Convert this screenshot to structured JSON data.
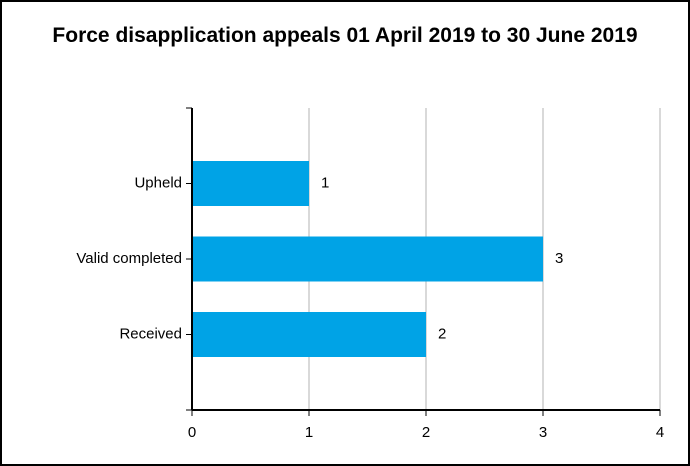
{
  "chart_data": {
    "type": "bar",
    "orientation": "horizontal",
    "title": "Force disapplication appeals 01 April 2019 to 30 June 2019",
    "categories": [
      "Upheld",
      "Valid completed",
      "Received"
    ],
    "values": [
      1,
      3,
      2
    ],
    "color": "#00a3e6",
    "xlim": [
      0,
      4
    ],
    "xticks": [
      0,
      1,
      2,
      3,
      4
    ],
    "grid": true
  }
}
